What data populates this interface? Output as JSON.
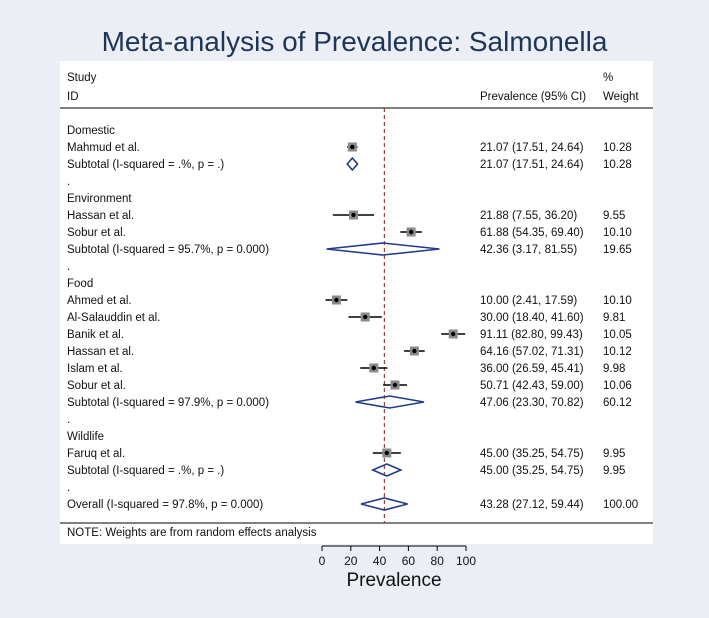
{
  "chart_data": {
    "type": "forest",
    "title": "Meta-analysis of Prevalence: Salmonella",
    "xlabel": "Prevalence",
    "xlim": [
      0,
      100
    ],
    "xticks": [
      "0",
      "20",
      "40",
      "60",
      "80",
      "100"
    ],
    "reference_line": 43.28,
    "header": {
      "study_line1": "Study",
      "study_line2": "ID",
      "pct": "%",
      "es": "Prevalence (95% CI)",
      "weight": "Weight"
    },
    "note": "NOTE: Weights are from random effects analysis",
    "rows": [
      {
        "kind": "group",
        "label": "Domestic"
      },
      {
        "kind": "study",
        "label": "Mahmud et al.",
        "es": 21.07,
        "lo": 17.51,
        "hi": 24.64,
        "es_text": "21.07 (17.51, 24.64)",
        "weight": "10.28"
      },
      {
        "kind": "subtotal",
        "label": "Subtotal  (I-squared = .%, p = .)",
        "es": 21.07,
        "lo": 17.51,
        "hi": 24.64,
        "es_text": "21.07 (17.51, 24.64)",
        "weight": "10.28"
      },
      {
        "kind": "spacer",
        "label": "."
      },
      {
        "kind": "group",
        "label": "Environment"
      },
      {
        "kind": "study",
        "label": "Hassan et al.",
        "es": 21.88,
        "lo": 7.55,
        "hi": 36.2,
        "es_text": "21.88 (7.55, 36.20)",
        "weight": "9.55"
      },
      {
        "kind": "study",
        "label": "Sobur et al.",
        "es": 61.88,
        "lo": 54.35,
        "hi": 69.4,
        "es_text": "61.88 (54.35, 69.40)",
        "weight": "10.10"
      },
      {
        "kind": "subtotal",
        "label": "Subtotal  (I-squared = 95.7%, p = 0.000)",
        "es": 42.36,
        "lo": 3.17,
        "hi": 81.55,
        "es_text": "42.36 (3.17, 81.55)",
        "weight": "19.65"
      },
      {
        "kind": "spacer",
        "label": "."
      },
      {
        "kind": "group",
        "label": "Food"
      },
      {
        "kind": "study",
        "label": "Ahmed et al.",
        "es": 10.0,
        "lo": 2.41,
        "hi": 17.59,
        "es_text": "10.00 (2.41, 17.59)",
        "weight": "10.10"
      },
      {
        "kind": "study",
        "label": "Al-Salauddin et al.",
        "es": 30.0,
        "lo": 18.4,
        "hi": 41.6,
        "es_text": "30.00 (18.40, 41.60)",
        "weight": "9.81"
      },
      {
        "kind": "study",
        "label": "Banik et al.",
        "es": 91.11,
        "lo": 82.8,
        "hi": 99.43,
        "es_text": "91.11 (82.80, 99.43)",
        "weight": "10.05"
      },
      {
        "kind": "study",
        "label": "Hassan et al.",
        "es": 64.16,
        "lo": 57.02,
        "hi": 71.31,
        "es_text": "64.16 (57.02, 71.31)",
        "weight": "10.12"
      },
      {
        "kind": "study",
        "label": "Islam et al.",
        "es": 36.0,
        "lo": 26.59,
        "hi": 45.41,
        "es_text": "36.00 (26.59, 45.41)",
        "weight": "9.98"
      },
      {
        "kind": "study",
        "label": "Sobur et al.",
        "es": 50.71,
        "lo": 42.43,
        "hi": 59.0,
        "es_text": "50.71 (42.43, 59.00)",
        "weight": "10.06"
      },
      {
        "kind": "subtotal",
        "label": "Subtotal  (I-squared = 97.9%, p = 0.000)",
        "es": 47.06,
        "lo": 23.3,
        "hi": 70.82,
        "es_text": "47.06 (23.30, 70.82)",
        "weight": "60.12"
      },
      {
        "kind": "spacer",
        "label": "."
      },
      {
        "kind": "group",
        "label": "Wildlife"
      },
      {
        "kind": "study",
        "label": "Faruq et al.",
        "es": 45.0,
        "lo": 35.25,
        "hi": 54.75,
        "es_text": "45.00 (35.25, 54.75)",
        "weight": "9.95"
      },
      {
        "kind": "subtotal",
        "label": "Subtotal  (I-squared = .%, p = .)",
        "es": 45.0,
        "lo": 35.25,
        "hi": 54.75,
        "es_text": "45.00 (35.25, 54.75)",
        "weight": "9.95"
      },
      {
        "kind": "spacer",
        "label": "."
      },
      {
        "kind": "overall",
        "label": "Overall  (I-squared = 97.8%, p = 0.000)",
        "es": 43.28,
        "lo": 27.12,
        "hi": 59.44,
        "es_text": "43.28 (27.12, 59.44)",
        "weight": "100.00"
      }
    ]
  }
}
